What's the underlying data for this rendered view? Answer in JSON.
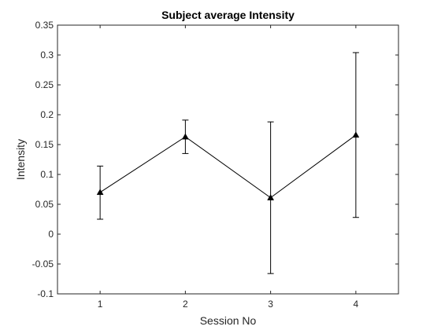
{
  "chart_data": {
    "type": "line",
    "title": "Subject average Intensity",
    "xlabel": "Session No",
    "ylabel": "Intensity",
    "xlim": [
      0.5,
      4.5
    ],
    "ylim": [
      -0.1,
      0.35
    ],
    "xticks": [
      1,
      2,
      3,
      4
    ],
    "xtick_labels": [
      "1",
      "2",
      "3",
      "4"
    ],
    "yticks": [
      -0.1,
      -0.05,
      0,
      0.05,
      0.1,
      0.15,
      0.2,
      0.25,
      0.3,
      0.35
    ],
    "ytick_labels": [
      "-0.1",
      "-0.05",
      "0",
      "0.05",
      "0.1",
      "0.15",
      "0.2",
      "0.25",
      "0.3",
      "0.35"
    ],
    "grid": false,
    "marker": "triangle",
    "line_color": "#000000",
    "series": [
      {
        "x": [
          1,
          2,
          3,
          4
        ],
        "y": [
          0.07,
          0.163,
          0.061,
          0.166
        ],
        "err_low": [
          0.025,
          0.135,
          -0.066,
          0.028
        ],
        "err_high": [
          0.114,
          0.191,
          0.188,
          0.304
        ]
      }
    ]
  }
}
